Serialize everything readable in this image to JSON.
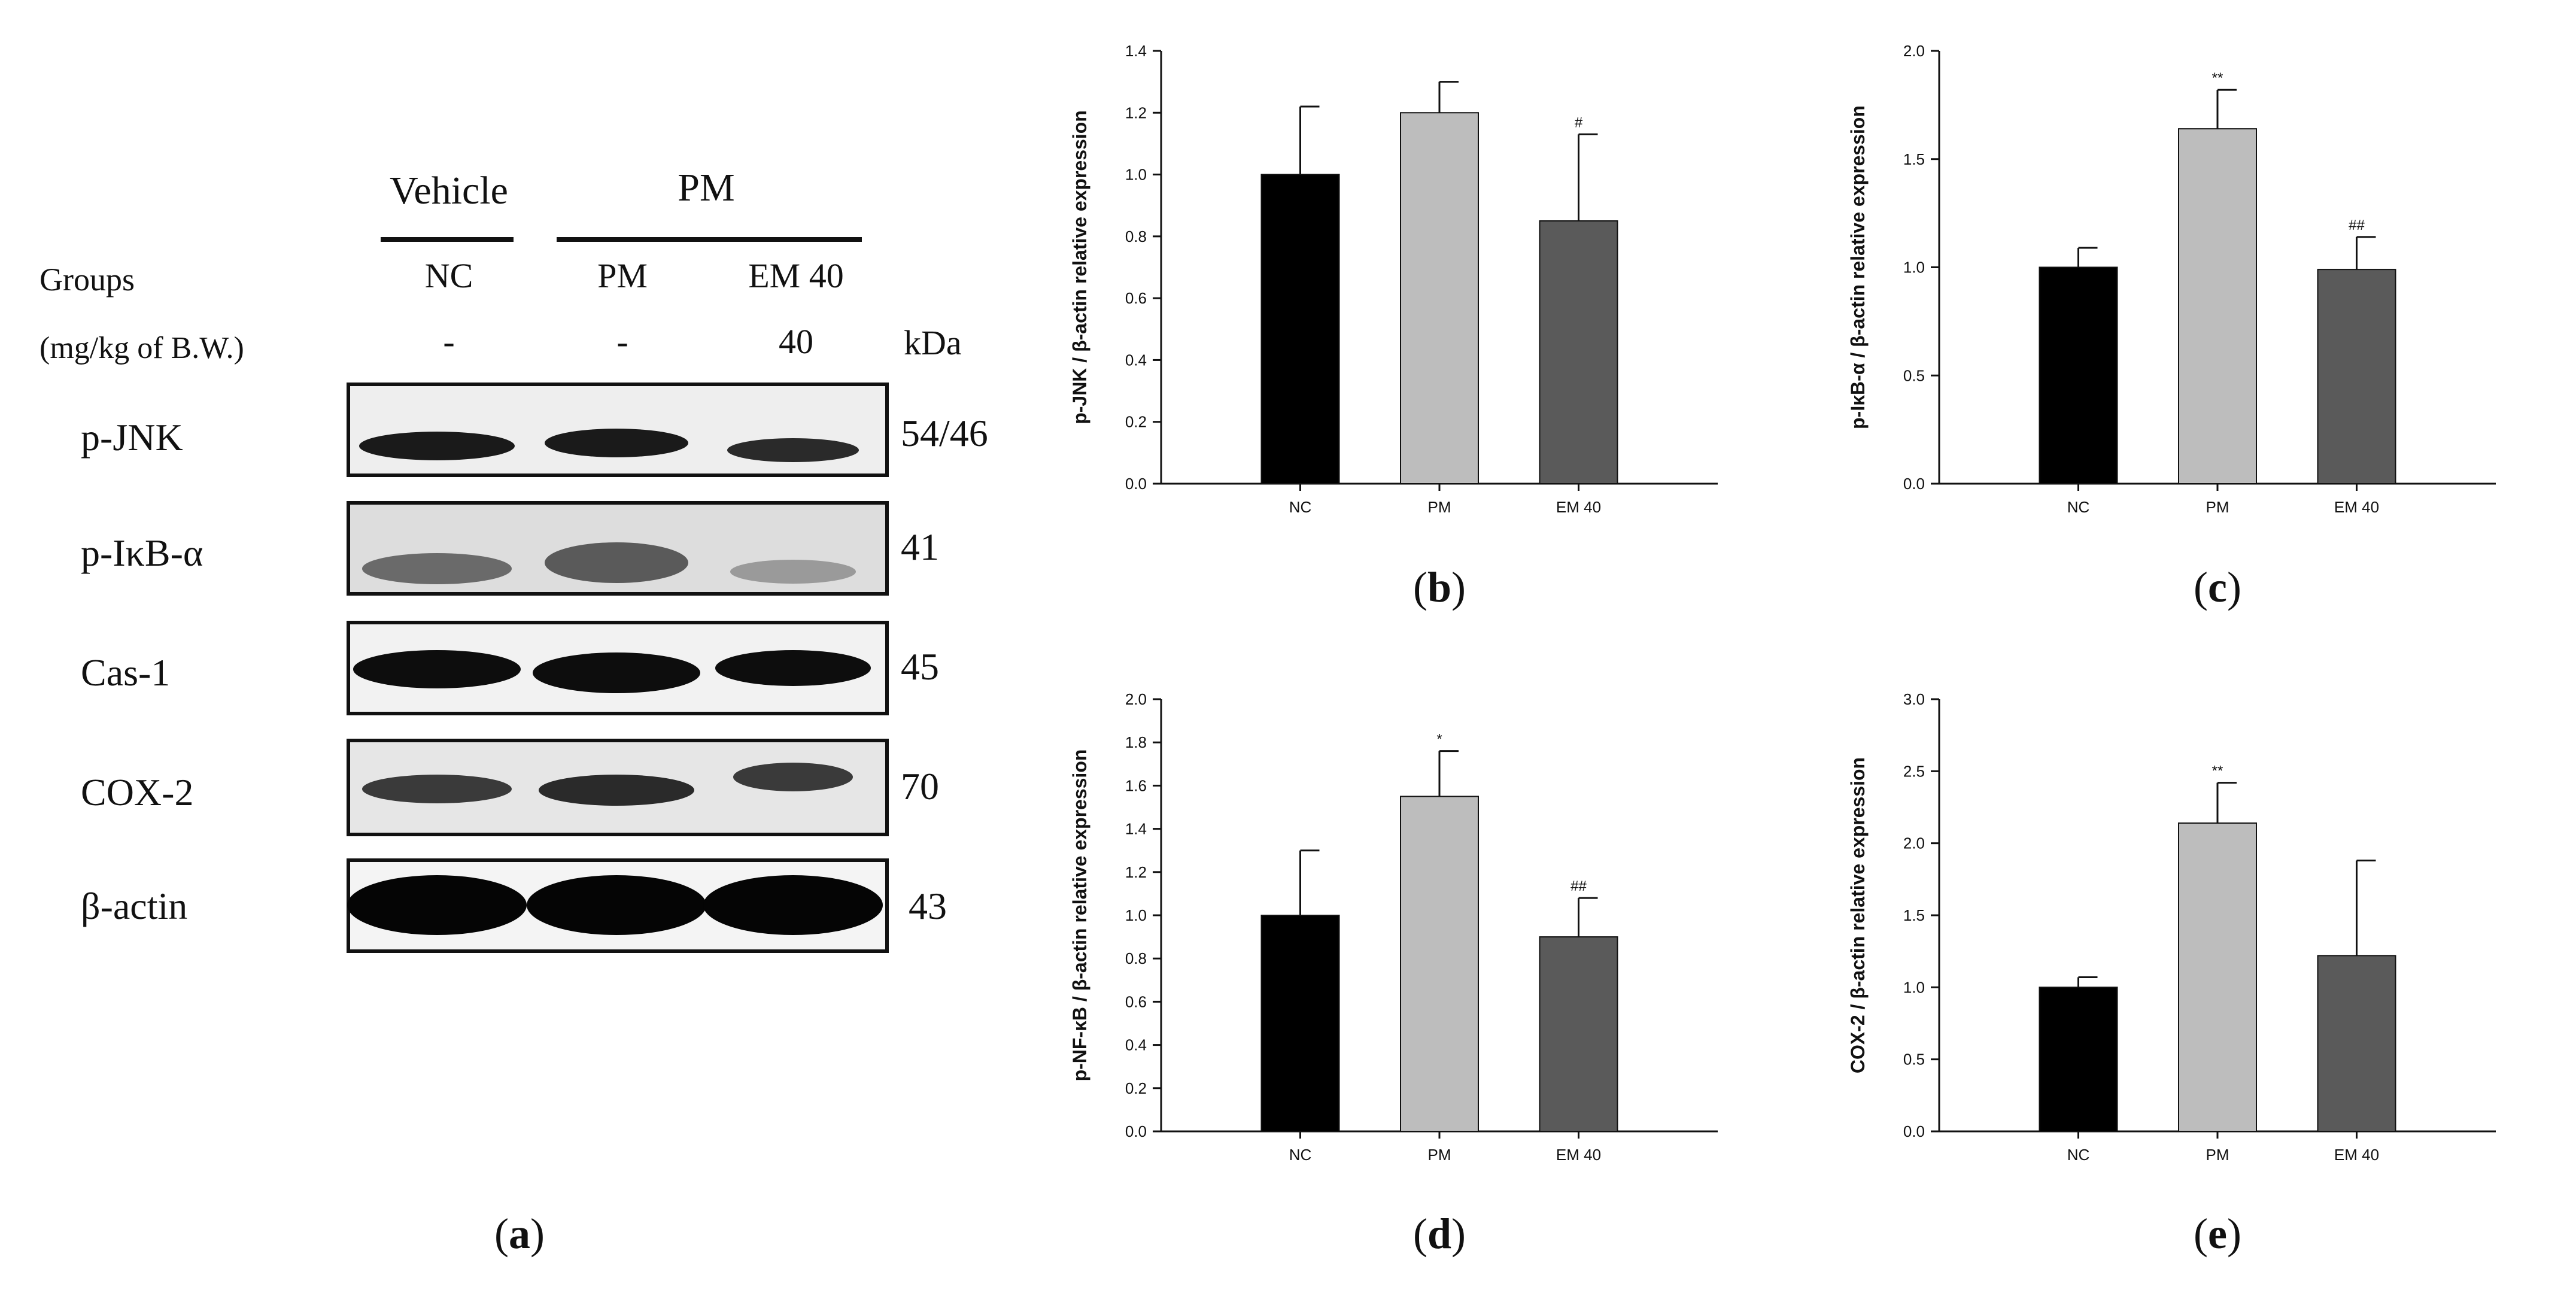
{
  "panels": {
    "a": "a",
    "b": "b",
    "c": "c",
    "d": "d",
    "e": "e"
  },
  "western_blot": {
    "header_vehicle": "Vehicle",
    "header_pm": "PM",
    "groups_label": "Groups",
    "dose_label": "(mg/kg of B.W.)",
    "kda_label": "kDa",
    "lanes": [
      {
        "name": "NC",
        "dose": "-"
      },
      {
        "name": "PM",
        "dose": "-"
      },
      {
        "name": "EM 40",
        "dose": "40"
      }
    ],
    "blots": [
      {
        "protein": "p-JNK",
        "kda": "54/46"
      },
      {
        "protein": "p-IκB-α",
        "kda": "41"
      },
      {
        "protein": "Cas-1",
        "kda": "45"
      },
      {
        "protein": "COX-2",
        "kda": "70"
      },
      {
        "protein": "β-actin",
        "kda": "43"
      }
    ]
  },
  "chart_data": [
    {
      "panel": "b",
      "type": "bar",
      "categories": [
        "NC",
        "PM",
        "EM 40"
      ],
      "values": [
        1.0,
        1.2,
        0.85
      ],
      "errors": [
        0.22,
        0.1,
        0.28
      ],
      "significance": [
        "",
        "",
        "#"
      ],
      "ylabel": "p-JNK / β-actin relative expression",
      "ylim": [
        0,
        1.4
      ],
      "yticks": [
        "0.0",
        "0.2",
        "0.4",
        "0.6",
        "0.8",
        "1.0",
        "1.2",
        "1.4"
      ],
      "colors": [
        "#000000",
        "#bdbdbd",
        "#5a5a5a"
      ]
    },
    {
      "panel": "c",
      "type": "bar",
      "categories": [
        "NC",
        "PM",
        "EM 40"
      ],
      "values": [
        1.0,
        1.64,
        0.99
      ],
      "errors": [
        0.09,
        0.18,
        0.15
      ],
      "significance": [
        "",
        "**",
        "##"
      ],
      "ylabel": "p-IκB-α / β-actin relative expression",
      "ylim": [
        0,
        2.0
      ],
      "yticks": [
        "0.0",
        "0.5",
        "1.0",
        "1.5",
        "2.0"
      ],
      "colors": [
        "#000000",
        "#bdbdbd",
        "#5a5a5a"
      ]
    },
    {
      "panel": "d",
      "type": "bar",
      "categories": [
        "NC",
        "PM",
        "EM 40"
      ],
      "values": [
        1.0,
        1.55,
        0.9
      ],
      "errors": [
        0.3,
        0.21,
        0.18
      ],
      "significance": [
        "",
        "*",
        "##"
      ],
      "ylabel": "p-NF-κB / β-actin relative expression",
      "ylim": [
        0,
        2.0
      ],
      "yticks": [
        "0.0",
        "0.2",
        "0.4",
        "0.6",
        "0.8",
        "1.0",
        "1.2",
        "1.4",
        "1.6",
        "1.8",
        "2.0"
      ],
      "colors": [
        "#000000",
        "#bdbdbd",
        "#5a5a5a"
      ]
    },
    {
      "panel": "e",
      "type": "bar",
      "categories": [
        "NC",
        "PM",
        "EM 40"
      ],
      "values": [
        1.0,
        2.14,
        1.22
      ],
      "errors": [
        0.07,
        0.28,
        0.66
      ],
      "significance": [
        "",
        "**",
        ""
      ],
      "ylabel": "COX-2 / β-actin relative expression",
      "ylim": [
        0,
        3.0
      ],
      "yticks": [
        "0.0",
        "0.5",
        "1.0",
        "1.5",
        "2.0",
        "2.5",
        "3.0"
      ],
      "colors": [
        "#000000",
        "#bdbdbd",
        "#5a5a5a"
      ]
    }
  ]
}
